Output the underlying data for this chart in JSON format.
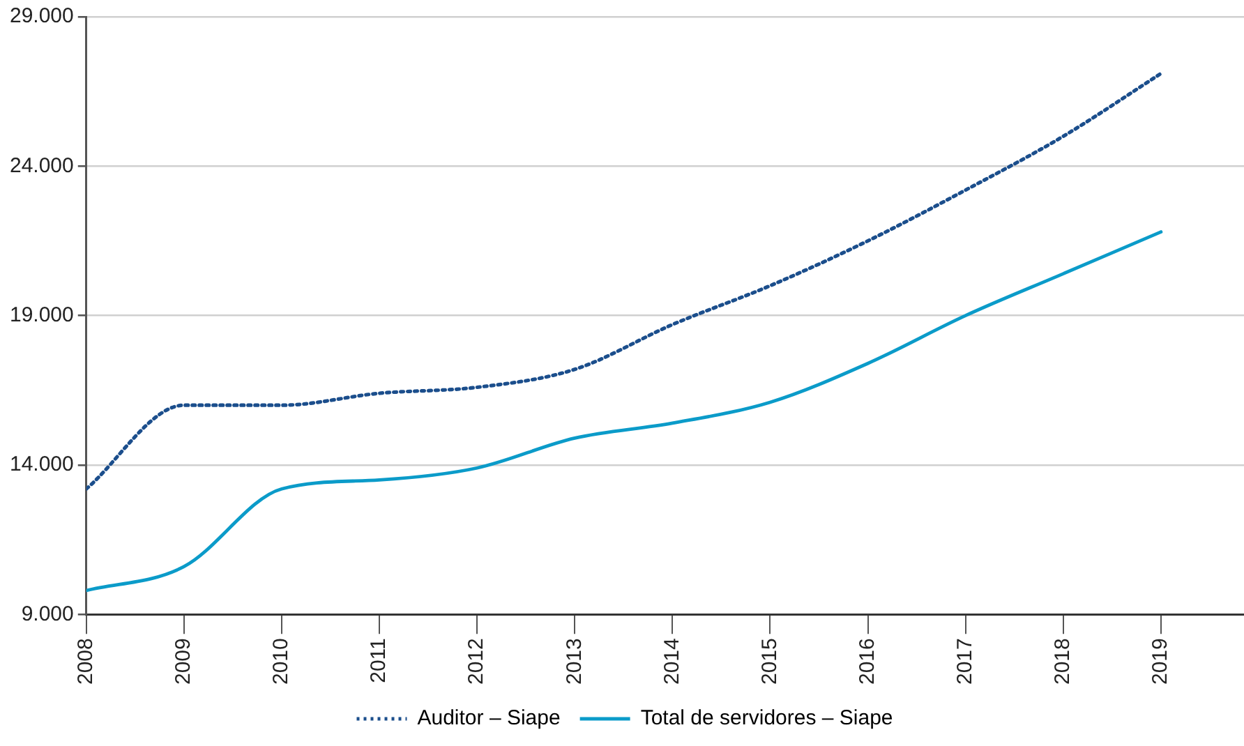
{
  "chart_data": {
    "type": "line",
    "x": [
      2008,
      2009,
      2010,
      2011,
      2012,
      2013,
      2014,
      2015,
      2016,
      2017,
      2018,
      2019
    ],
    "xlim": [
      2008,
      2019.85
    ],
    "xticks": [
      2008,
      2009,
      2010,
      2011,
      2012,
      2013,
      2014,
      2015,
      2016,
      2017,
      2018,
      2019
    ],
    "ylim": [
      9000,
      29000
    ],
    "yticks": [
      {
        "value": 9000,
        "label": "9.000"
      },
      {
        "value": 14000,
        "label": "14.000"
      },
      {
        "value": 19000,
        "label": "19.000"
      },
      {
        "value": 24000,
        "label": "24.000"
      },
      {
        "value": 29000,
        "label": "29.000"
      }
    ],
    "grid": "y",
    "legend": "bottom",
    "marker": "none",
    "series": [
      {
        "name": "Auditor – Siape",
        "color": "#1b4e8c",
        "line_style": "dotted",
        "values": [
          13200,
          16000,
          16000,
          16400,
          16600,
          17200,
          18700,
          20000,
          21500,
          23200,
          25000,
          27100
        ]
      },
      {
        "name": "Total de servidores – Siape",
        "color": "#0b9bc9",
        "line_style": "solid",
        "values": [
          9800,
          10600,
          13200,
          13500,
          13900,
          14900,
          15400,
          16100,
          17400,
          19000,
          20400,
          21800
        ]
      }
    ]
  }
}
